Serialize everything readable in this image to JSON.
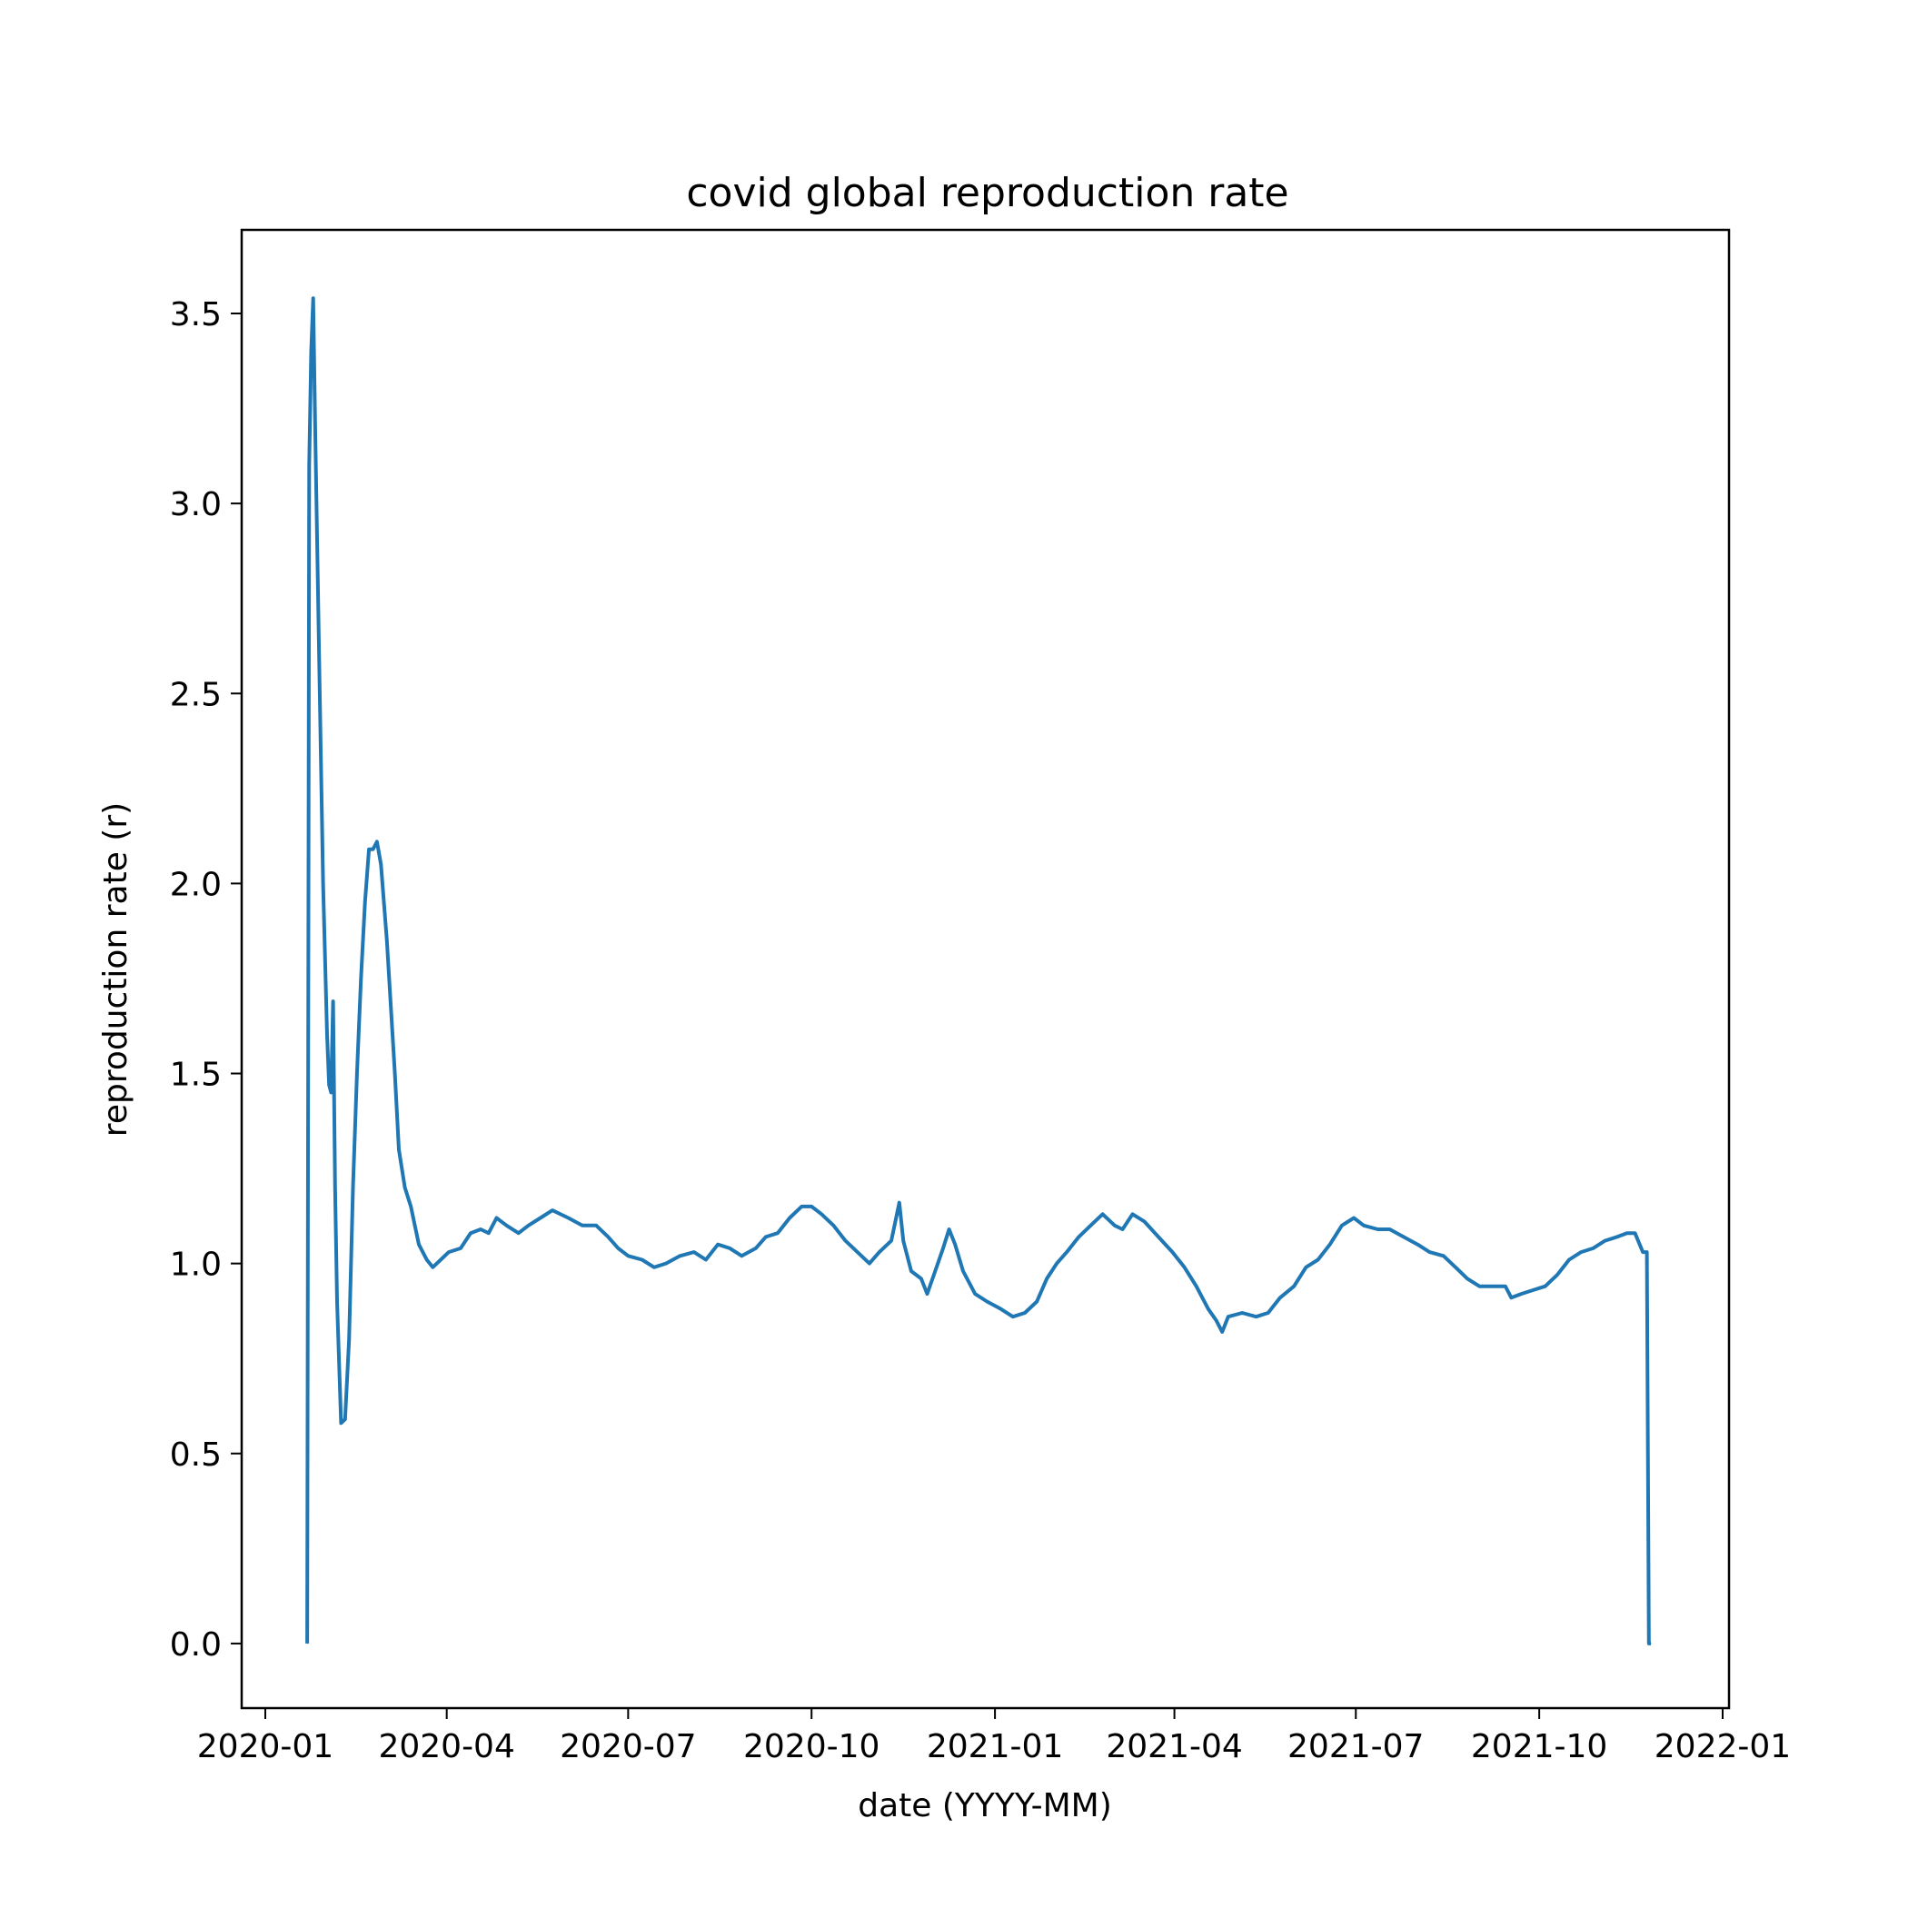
{
  "chart_data": {
    "type": "line",
    "title": "covid global reproduction rate",
    "xlabel": "date (YYYY-MM)",
    "ylabel": "reproduction rate (r)",
    "xlim": [
      "2020-01-01",
      "2022-01-01"
    ],
    "ylim": [
      -0.17,
      3.72
    ],
    "x_ticks": [
      "2020-01",
      "2020-04",
      "2020-07",
      "2020-10",
      "2021-01",
      "2021-04",
      "2021-07",
      "2021-10",
      "2022-01"
    ],
    "y_ticks": [
      "0.0",
      "0.5",
      "1.0",
      "1.5",
      "2.0",
      "2.5",
      "3.0",
      "3.5"
    ],
    "grid": false,
    "color": "#1f77b4",
    "series": [
      {
        "points": [
          [
            "2020-01-22",
            0.0
          ],
          [
            "2020-01-23",
            3.1
          ],
          [
            "2020-01-24",
            3.4
          ],
          [
            "2020-01-25",
            3.54
          ],
          [
            "2020-01-26",
            3.2
          ],
          [
            "2020-01-28",
            2.6
          ],
          [
            "2020-01-30",
            2.0
          ],
          [
            "2020-02-01",
            1.6
          ],
          [
            "2020-02-02",
            1.47
          ],
          [
            "2020-02-03",
            1.45
          ],
          [
            "2020-02-04",
            1.69
          ],
          [
            "2020-02-05",
            1.2
          ],
          [
            "2020-02-06",
            0.9
          ],
          [
            "2020-02-08",
            0.58
          ],
          [
            "2020-02-10",
            0.59
          ],
          [
            "2020-02-12",
            0.8
          ],
          [
            "2020-02-14",
            1.2
          ],
          [
            "2020-02-16",
            1.5
          ],
          [
            "2020-02-18",
            1.75
          ],
          [
            "2020-02-20",
            1.95
          ],
          [
            "2020-02-22",
            2.09
          ],
          [
            "2020-02-24",
            2.09
          ],
          [
            "2020-02-26",
            2.11
          ],
          [
            "2020-02-28",
            2.05
          ],
          [
            "2020-03-02",
            1.85
          ],
          [
            "2020-03-06",
            1.5
          ],
          [
            "2020-03-08",
            1.3
          ],
          [
            "2020-03-11",
            1.2
          ],
          [
            "2020-03-14",
            1.15
          ],
          [
            "2020-03-18",
            1.05
          ],
          [
            "2020-03-22",
            1.01
          ],
          [
            "2020-03-25",
            0.99
          ],
          [
            "2020-03-29",
            1.01
          ],
          [
            "2020-04-02",
            1.03
          ],
          [
            "2020-04-08",
            1.04
          ],
          [
            "2020-04-13",
            1.08
          ],
          [
            "2020-04-18",
            1.09
          ],
          [
            "2020-04-22",
            1.08
          ],
          [
            "2020-04-26",
            1.12
          ],
          [
            "2020-05-01",
            1.1
          ],
          [
            "2020-05-07",
            1.08
          ],
          [
            "2020-05-12",
            1.1
          ],
          [
            "2020-05-18",
            1.12
          ],
          [
            "2020-05-24",
            1.14
          ],
          [
            "2020-06-01",
            1.12
          ],
          [
            "2020-06-08",
            1.1
          ],
          [
            "2020-06-15",
            1.1
          ],
          [
            "2020-06-21",
            1.07
          ],
          [
            "2020-06-26",
            1.04
          ],
          [
            "2020-07-01",
            1.02
          ],
          [
            "2020-07-08",
            1.01
          ],
          [
            "2020-07-14",
            0.99
          ],
          [
            "2020-07-20",
            1.0
          ],
          [
            "2020-07-27",
            1.02
          ],
          [
            "2020-08-03",
            1.03
          ],
          [
            "2020-08-09",
            1.01
          ],
          [
            "2020-08-15",
            1.05
          ],
          [
            "2020-08-21",
            1.04
          ],
          [
            "2020-08-27",
            1.02
          ],
          [
            "2020-09-03",
            1.04
          ],
          [
            "2020-09-08",
            1.07
          ],
          [
            "2020-09-14",
            1.08
          ],
          [
            "2020-09-20",
            1.12
          ],
          [
            "2020-09-26",
            1.15
          ],
          [
            "2020-10-01",
            1.15
          ],
          [
            "2020-10-06",
            1.13
          ],
          [
            "2020-10-12",
            1.1
          ],
          [
            "2020-10-18",
            1.06
          ],
          [
            "2020-10-24",
            1.03
          ],
          [
            "2020-10-30",
            1.0
          ],
          [
            "2020-11-04",
            1.03
          ],
          [
            "2020-11-10",
            1.06
          ],
          [
            "2020-11-14",
            1.16
          ],
          [
            "2020-11-16",
            1.06
          ],
          [
            "2020-11-20",
            0.98
          ],
          [
            "2020-11-25",
            0.96
          ],
          [
            "2020-11-28",
            0.92
          ],
          [
            "2020-12-02",
            0.98
          ],
          [
            "2020-12-06",
            1.04
          ],
          [
            "2020-12-09",
            1.09
          ],
          [
            "2020-12-12",
            1.05
          ],
          [
            "2020-12-16",
            0.98
          ],
          [
            "2020-12-22",
            0.92
          ],
          [
            "2020-12-28",
            0.9
          ],
          [
            "2021-01-04",
            0.88
          ],
          [
            "2021-01-10",
            0.86
          ],
          [
            "2021-01-16",
            0.87
          ],
          [
            "2021-01-22",
            0.9
          ],
          [
            "2021-01-27",
            0.96
          ],
          [
            "2021-02-01",
            1.0
          ],
          [
            "2021-02-06",
            1.03
          ],
          [
            "2021-02-12",
            1.07
          ],
          [
            "2021-02-18",
            1.1
          ],
          [
            "2021-02-24",
            1.13
          ],
          [
            "2021-03-02",
            1.1
          ],
          [
            "2021-03-06",
            1.09
          ],
          [
            "2021-03-11",
            1.13
          ],
          [
            "2021-03-17",
            1.11
          ],
          [
            "2021-03-24",
            1.07
          ],
          [
            "2021-03-31",
            1.03
          ],
          [
            "2021-04-06",
            0.99
          ],
          [
            "2021-04-12",
            0.94
          ],
          [
            "2021-04-18",
            0.88
          ],
          [
            "2021-04-22",
            0.85
          ],
          [
            "2021-04-25",
            0.82
          ],
          [
            "2021-04-28",
            0.86
          ],
          [
            "2021-05-05",
            0.87
          ],
          [
            "2021-05-12",
            0.86
          ],
          [
            "2021-05-18",
            0.87
          ],
          [
            "2021-05-24",
            0.91
          ],
          [
            "2021-05-31",
            0.94
          ],
          [
            "2021-06-06",
            0.99
          ],
          [
            "2021-06-12",
            1.01
          ],
          [
            "2021-06-18",
            1.05
          ],
          [
            "2021-06-24",
            1.1
          ],
          [
            "2021-06-30",
            1.12
          ],
          [
            "2021-07-05",
            1.1
          ],
          [
            "2021-07-12",
            1.09
          ],
          [
            "2021-07-18",
            1.09
          ],
          [
            "2021-07-25",
            1.07
          ],
          [
            "2021-08-01",
            1.05
          ],
          [
            "2021-08-07",
            1.03
          ],
          [
            "2021-08-14",
            1.02
          ],
          [
            "2021-08-20",
            0.99
          ],
          [
            "2021-08-26",
            0.96
          ],
          [
            "2021-09-01",
            0.94
          ],
          [
            "2021-09-08",
            0.94
          ],
          [
            "2021-09-14",
            0.94
          ],
          [
            "2021-09-17",
            0.91
          ],
          [
            "2021-09-22",
            0.92
          ],
          [
            "2021-09-28",
            0.93
          ],
          [
            "2021-10-04",
            0.94
          ],
          [
            "2021-10-10",
            0.97
          ],
          [
            "2021-10-16",
            1.01
          ],
          [
            "2021-10-22",
            1.03
          ],
          [
            "2021-10-28",
            1.04
          ],
          [
            "2021-11-03",
            1.06
          ],
          [
            "2021-11-09",
            1.07
          ],
          [
            "2021-11-14",
            1.08
          ],
          [
            "2021-11-18",
            1.08
          ],
          [
            "2021-11-22",
            1.03
          ],
          [
            "2021-11-24",
            1.03
          ],
          [
            "2021-11-25",
            0.0
          ],
          [
            "2021-11-26",
            0.0
          ]
        ]
      }
    ]
  }
}
